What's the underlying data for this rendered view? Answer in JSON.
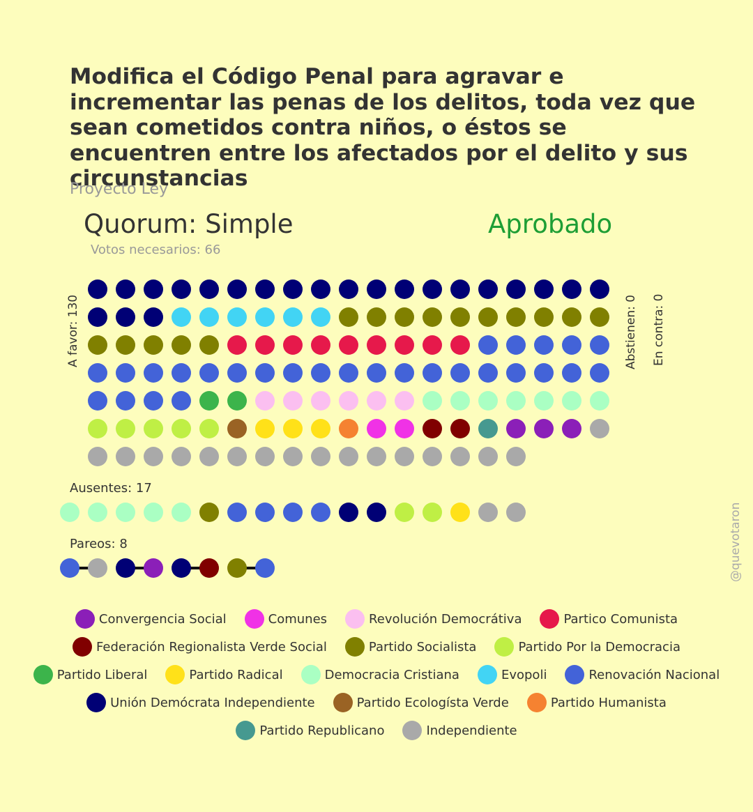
{
  "title": "Modifica el Código Penal para agravar e incrementar las penas de los delitos, toda vez que sean cometidos contra niños, o éstos se encuentren entre los afectados por el delito y sus circunstancias",
  "subtitle": "Proyecto Ley",
  "quorum": "Quorum: Simple",
  "result": "Aprobado",
  "result_color": "#1e9e35",
  "votos_necesarios": "Votos necesarios: 66",
  "a_favor_label": "A favor: 130",
  "abstienen_label": "Abstienen: 0",
  "en_contra_label": "En contra: 0",
  "ausentes_label": "Ausentes: 17",
  "pareos_label": "Pareos: 8",
  "handle": "@quevotaron",
  "parties": [
    {
      "key": "CS",
      "name": "Convergencia Social",
      "color": "#8b1fb8"
    },
    {
      "key": "COM",
      "name": "Comunes",
      "color": "#f032e6"
    },
    {
      "key": "RD",
      "name": "Revolución Democrátiva",
      "color": "#fbbff0"
    },
    {
      "key": "PC",
      "name": "Partico Comunista",
      "color": "#e6194b"
    },
    {
      "key": "FRVS",
      "name": "Federación Regionalista Verde Social",
      "color": "#800000"
    },
    {
      "key": "PS",
      "name": "Partido Socialista",
      "color": "#808000"
    },
    {
      "key": "PPD",
      "name": "Partido Por la Democracia",
      "color": "#bfef45"
    },
    {
      "key": "PL",
      "name": "Partido Liberal",
      "color": "#3cb44b"
    },
    {
      "key": "PR",
      "name": "Partido Radical",
      "color": "#ffe119"
    },
    {
      "key": "DC",
      "name": "Democracia Cristiana",
      "color": "#aaffc3"
    },
    {
      "key": "EVO",
      "name": "Evopoli",
      "color": "#42d4f4"
    },
    {
      "key": "RN",
      "name": "Renovación Nacional",
      "color": "#4363d8"
    },
    {
      "key": "UDI",
      "name": "Unión Demócrata Independiente",
      "color": "#000075"
    },
    {
      "key": "PEV",
      "name": "Partido Ecologísta Verde",
      "color": "#9a6324"
    },
    {
      "key": "PH",
      "name": "Partido Humanista",
      "color": "#f58231"
    },
    {
      "key": "REP",
      "name": "Partido Republicano",
      "color": "#469990"
    },
    {
      "key": "IND",
      "name": "Independiente",
      "color": "#a9a9a9"
    }
  ],
  "chart_data": {
    "type": "waffle",
    "a_favor": 130,
    "abstienen": 0,
    "en_contra": 0,
    "ausentes": 17,
    "pareos": 8,
    "a_favor_seats": [
      {
        "party": "UDI",
        "count": 22
      },
      {
        "party": "EVO",
        "count": 6
      },
      {
        "party": "PS",
        "count": 15
      },
      {
        "party": "PC",
        "count": 9
      },
      {
        "party": "RN",
        "count": 28
      },
      {
        "party": "PL",
        "count": 2
      },
      {
        "party": "RD",
        "count": 6
      },
      {
        "party": "DC",
        "count": 7
      },
      {
        "party": "PPD",
        "count": 5
      },
      {
        "party": "PEV",
        "count": 1
      },
      {
        "party": "PR",
        "count": 3
      },
      {
        "party": "PH",
        "count": 1
      },
      {
        "party": "COM",
        "count": 2
      },
      {
        "party": "FRVS",
        "count": 2
      },
      {
        "party": "REP",
        "count": 1
      },
      {
        "party": "CS",
        "count": 3
      },
      {
        "party": "IND",
        "count": 17
      }
    ],
    "ausentes_seats": [
      {
        "party": "DC",
        "count": 5
      },
      {
        "party": "PS",
        "count": 1
      },
      {
        "party": "RN",
        "count": 4
      },
      {
        "party": "UDI",
        "count": 2
      },
      {
        "party": "PPD",
        "count": 2
      },
      {
        "party": "PR",
        "count": 1
      },
      {
        "party": "IND",
        "count": 2
      }
    ],
    "pareos_pairs": [
      [
        "RN",
        "IND"
      ],
      [
        "UDI",
        "CS"
      ],
      [
        "UDI",
        "FRVS"
      ],
      [
        "PS",
        "RN"
      ]
    ]
  }
}
